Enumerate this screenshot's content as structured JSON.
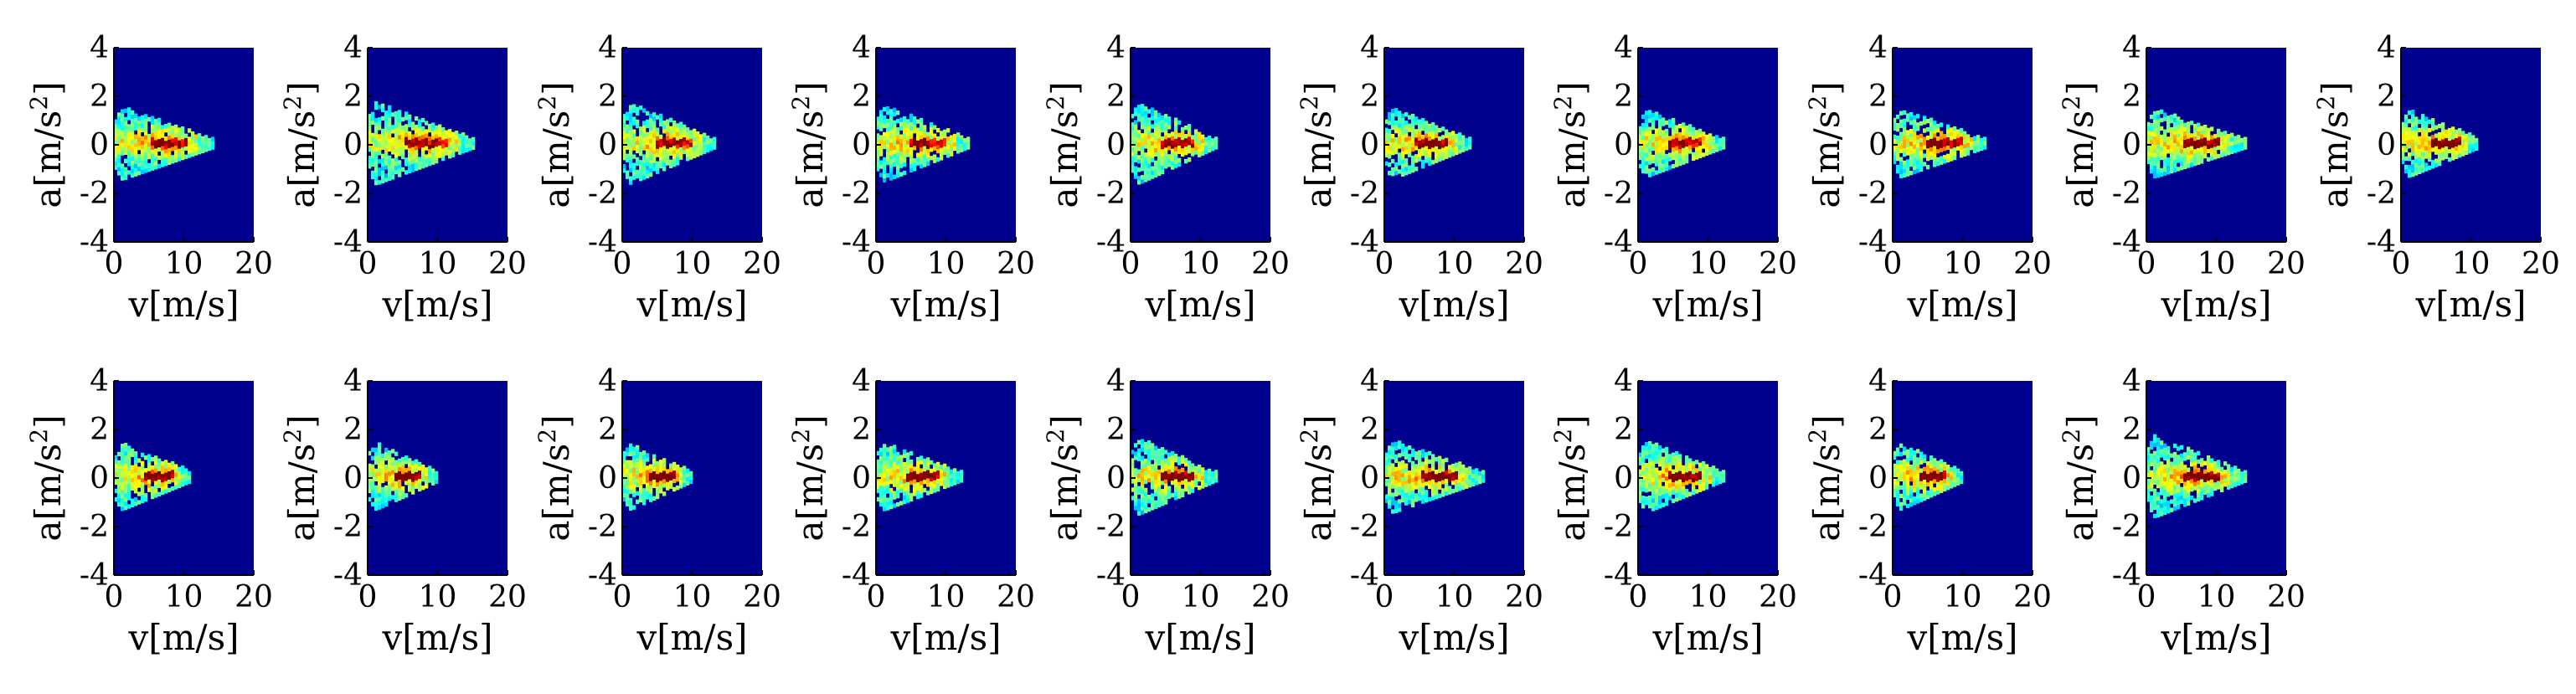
{
  "chart_data": {
    "type": "heatmap",
    "layout": {
      "rows": 2,
      "cols": 10,
      "panel_count": 19
    },
    "shared_axes": {
      "xlabel": "v[m/s]",
      "ylabel_base": "a[m/s",
      "ylabel_superscript": "2",
      "ylabel_close": "]",
      "xlim": [
        0,
        20
      ],
      "ylim": [
        -4,
        4
      ],
      "xticks": [
        "0",
        "10",
        "20"
      ],
      "yticks": [
        "4",
        "2",
        "0",
        "-2",
        "-4"
      ]
    },
    "colormap": {
      "name": "jet",
      "background": "#00008f",
      "stops": [
        "#00008f",
        "#0000ff",
        "#0080ff",
        "#00ffff",
        "#80ff80",
        "#ffff00"
      ]
    },
    "cluster_description": "acceleration-velocity density, cone-shaped: widest near v=1, narrowing toward a=0 at larger v",
    "panels": [
      {
        "vmax": 14,
        "spread": 1.4,
        "peak": 0.7
      },
      {
        "vmax": 15,
        "spread": 1.6,
        "peak": 0.65
      },
      {
        "vmax": 13,
        "spread": 1.6,
        "peak": 0.65
      },
      {
        "vmax": 13,
        "spread": 1.5,
        "peak": 0.65
      },
      {
        "vmax": 12,
        "spread": 1.6,
        "peak": 0.7
      },
      {
        "vmax": 12,
        "spread": 1.4,
        "peak": 0.7
      },
      {
        "vmax": 12,
        "spread": 1.3,
        "peak": 0.7
      },
      {
        "vmax": 13,
        "spread": 1.3,
        "peak": 0.72
      },
      {
        "vmax": 14,
        "spread": 1.3,
        "peak": 0.75
      },
      {
        "vmax": 11,
        "spread": 1.3,
        "peak": 0.85
      },
      {
        "vmax": 11,
        "spread": 1.3,
        "peak": 0.8
      },
      {
        "vmax": 10,
        "spread": 1.3,
        "peak": 0.85
      },
      {
        "vmax": 10,
        "spread": 1.3,
        "peak": 0.9
      },
      {
        "vmax": 12,
        "spread": 1.3,
        "peak": 0.8
      },
      {
        "vmax": 12,
        "spread": 1.5,
        "peak": 0.8
      },
      {
        "vmax": 14,
        "spread": 1.4,
        "peak": 0.8
      },
      {
        "vmax": 12,
        "spread": 1.4,
        "peak": 0.85
      },
      {
        "vmax": 10,
        "spread": 1.3,
        "peak": 0.9
      },
      {
        "vmax": 14,
        "spread": 1.6,
        "peak": 0.8
      }
    ]
  }
}
